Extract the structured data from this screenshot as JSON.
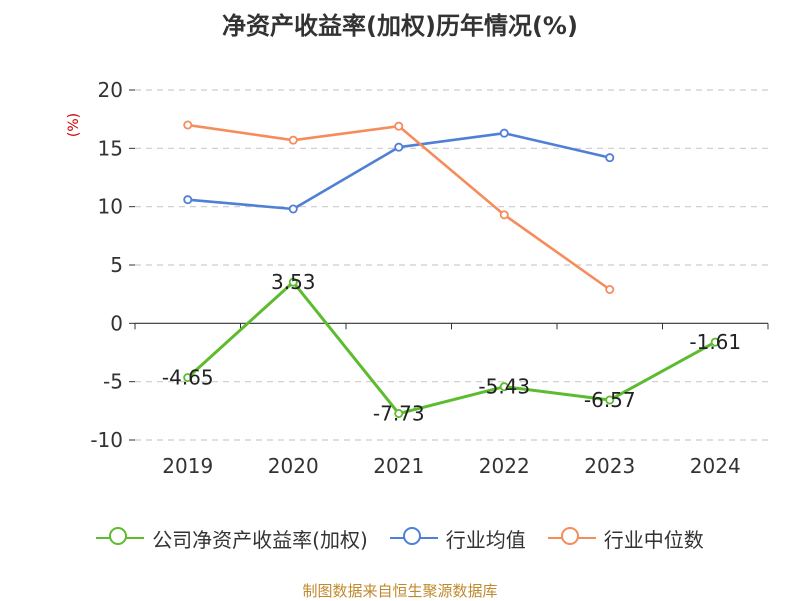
{
  "title": "净资产收益率(加权)历年情况(%)",
  "source": "制图数据来自恒生聚源数据库",
  "colors": {
    "company": "#5dbb2f",
    "industry_avg": "#4f7fd6",
    "industry_median": "#f58c5b",
    "y_unit": "#cc0000",
    "axis_text": "#333333",
    "grid": "#cccccc",
    "source": "#c08a2c"
  },
  "chart_data": {
    "type": "line",
    "x": [
      "2019",
      "2020",
      "2021",
      "2022",
      "2023",
      "2024"
    ],
    "ylabel": "(%)",
    "ylim": [
      -10,
      20
    ],
    "yticks": [
      20,
      15,
      10,
      5,
      0,
      -5,
      -10
    ],
    "grid": true,
    "legend_position": "bottom",
    "series": [
      {
        "key": "company",
        "name": "公司净资产收益率(加权)",
        "color": "#5dbb2f",
        "values": [
          -4.65,
          3.53,
          -7.73,
          -5.43,
          -6.57,
          -1.61
        ],
        "labels": [
          "-4.65",
          "3.53",
          "-7.73",
          "-5.43",
          "-6.57",
          "-1.61"
        ]
      },
      {
        "key": "industry_avg",
        "name": "行业均值",
        "color": "#4f7fd6",
        "values": [
          10.6,
          9.8,
          15.1,
          16.3,
          14.2,
          null
        ]
      },
      {
        "key": "industry_median",
        "name": "行业中位数",
        "color": "#f58c5b",
        "values": [
          17.0,
          15.7,
          16.9,
          9.3,
          2.9,
          null
        ]
      }
    ]
  }
}
